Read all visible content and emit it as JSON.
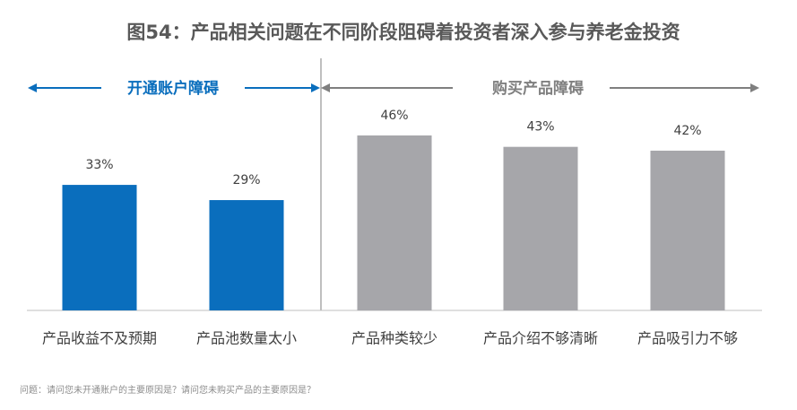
{
  "chart_data": {
    "type": "bar",
    "title": "图54：产品相关问题在不同阶段阻碍着投资者深入参与养老金投资",
    "categories": [
      "产品收益不及预期",
      "产品池数量太小",
      "产品种类较少",
      "产品介绍不够清晰",
      "产品吸引力不够"
    ],
    "values": [
      33,
      29,
      46,
      43,
      42
    ],
    "value_labels": [
      "33%",
      "29%",
      "46%",
      "43%",
      "42%"
    ],
    "colors": [
      "#0a6ebd",
      "#0a6ebd",
      "#a6a6aa",
      "#a6a6aa",
      "#a6a6aa"
    ],
    "groups": [
      {
        "name": "开通账户障碍",
        "color": "#0a6ebd"
      },
      {
        "name": "购买产品障碍",
        "color": "#7f7f7f"
      }
    ],
    "footnote": "问题：请问您未开通账户的主要原因是？请问您未购买产品的主要原因是？"
  }
}
